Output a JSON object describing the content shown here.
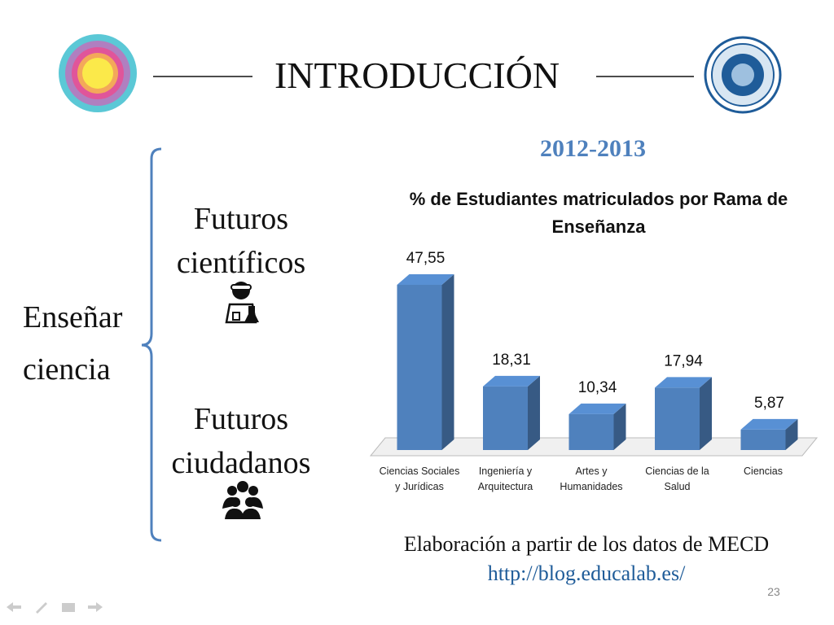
{
  "header": {
    "title": "INTRODUCCIÓN"
  },
  "left": {
    "main": "Enseñar ciencia",
    "branch_1": "Futuros científicos",
    "branch_2": "Futuros ciudadanos"
  },
  "year": "2012-2013",
  "chart_data": {
    "type": "bar3d",
    "title": "% de Estudiantes matriculados por Rama de Enseñanza",
    "categories": [
      "Ciencias Sociales y Jurídicas",
      "Ingeniería y Arquitectura",
      "Artes y Humanidades",
      "Ciencias de la Salud",
      "Ciencias"
    ],
    "values": [
      47.55,
      18.31,
      10.34,
      17.94,
      5.87
    ],
    "value_labels": [
      "47,55",
      "18,31",
      "10,34",
      "17,94",
      "5,87"
    ],
    "color": "#4f81bd"
  },
  "source": "Elaboración a partir de los datos de MECD",
  "url": "http://blog.educalab.es/",
  "page_number": "23"
}
